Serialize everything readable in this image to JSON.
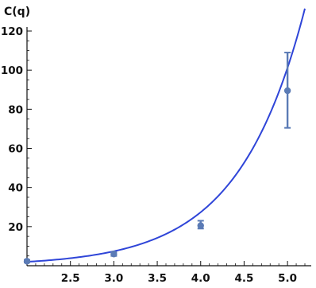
{
  "chart_data": {
    "type": "scatter",
    "ylabel": "C(q)",
    "xlabel": "",
    "title": "",
    "xlim": [
      2.0,
      5.2
    ],
    "ylim": [
      0,
      120
    ],
    "x_ticks": [
      2.5,
      3.0,
      3.5,
      4.0,
      4.5,
      5.0
    ],
    "x_tick_labels": [
      "2.5",
      "3.0",
      "3.5",
      "4.0",
      "4.5",
      "5.0"
    ],
    "y_ticks": [
      20,
      40,
      60,
      80,
      100,
      120
    ],
    "y_tick_labels": [
      "20",
      "40",
      "60",
      "80",
      "100",
      "120"
    ],
    "series": [
      {
        "type": "points_with_error_bars",
        "x": [
          2.0,
          3.0,
          4.0,
          5.0
        ],
        "y": [
          2.3,
          6.0,
          20.5,
          89.5
        ],
        "y_err_low": [
          1.7,
          5.0,
          19.0,
          70.5
        ],
        "y_err_high": [
          3.0,
          7.0,
          23.0,
          109.0
        ],
        "color": "#5b7bb5"
      },
      {
        "type": "fit_curve",
        "model": "exponential",
        "x_start": 2.0,
        "x_end": 5.2,
        "y_at_start": 2.0,
        "growth_rate_per_unit_x": 1.308,
        "color": "#2f45d8"
      }
    ],
    "grid": false,
    "legend": "none"
  }
}
